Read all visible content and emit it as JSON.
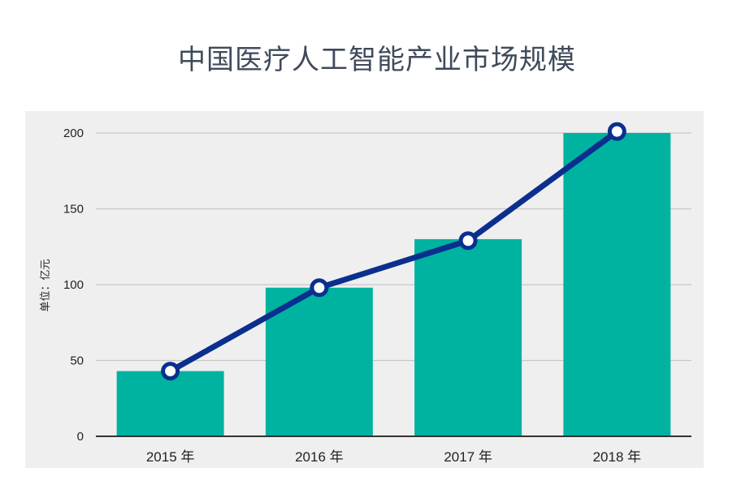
{
  "chart_data": {
    "type": "bar",
    "title": "中国医疗人工智能产业市场规模",
    "ylabel": "单位：亿元",
    "categories": [
      "2015 年",
      "2016 年",
      "2017 年",
      "2018 年"
    ],
    "values": [
      43,
      98,
      130,
      200
    ],
    "line_values": [
      43,
      98,
      129,
      201
    ],
    "ylim": [
      0,
      200
    ],
    "yticks": [
      0,
      50,
      100,
      150,
      200
    ],
    "grid": true,
    "colors": {
      "bar": "#00b2a0",
      "line": "#0b2f8f",
      "background": "#efefef",
      "grid": "#c7c7c7"
    }
  }
}
